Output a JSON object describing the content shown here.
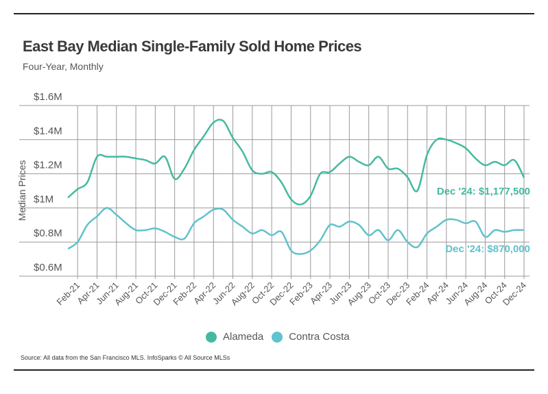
{
  "title": "East Bay Median Single-Family Sold Home Prices",
  "subtitle": "Four-Year, Monthly",
  "source": "Source:  All data from the San Francisco MLS. InfoSparks © All Source MLSs",
  "chart_data": {
    "type": "line",
    "ylabel": "Median Prices",
    "ylim": [
      0.6,
      1.6
    ],
    "yticks": [
      0.6,
      0.8,
      1.0,
      1.2,
      1.4,
      1.6
    ],
    "ytick_labels": [
      "$0.6M",
      "$0.8M",
      "$1M",
      "$1.2M",
      "$1.4M",
      "$1.6M"
    ],
    "grid": true,
    "legend_position": "bottom",
    "x": [
      "Jan-21",
      "Feb-21",
      "Mar-21",
      "Apr-21",
      "May-21",
      "Jun-21",
      "Jul-21",
      "Aug-21",
      "Sep-21",
      "Oct-21",
      "Nov-21",
      "Dec-21",
      "Jan-22",
      "Feb-22",
      "Mar-22",
      "Apr-22",
      "May-22",
      "Jun-22",
      "Jul-22",
      "Aug-22",
      "Sep-22",
      "Oct-22",
      "Nov-22",
      "Dec-22",
      "Jan-23",
      "Feb-23",
      "Mar-23",
      "Apr-23",
      "May-23",
      "Jun-23",
      "Jul-23",
      "Aug-23",
      "Sep-23",
      "Oct-23",
      "Nov-23",
      "Dec-23",
      "Jan-24",
      "Feb-24",
      "Mar-24",
      "Apr-24",
      "May-24",
      "Jun-24",
      "Jul-24",
      "Aug-24",
      "Sep-24",
      "Oct-24",
      "Nov-24",
      "Dec-24"
    ],
    "xtick_labels": [
      "Feb-21",
      "Apr-21",
      "Jun-21",
      "Aug-21",
      "Oct-21",
      "Dec-21",
      "Feb-22",
      "Apr-22",
      "Jun-22",
      "Aug-22",
      "Oct-22",
      "Dec-22",
      "Feb-23",
      "Apr-23",
      "Jun-23",
      "Aug-23",
      "Oct-23",
      "Dec-23",
      "Feb-24",
      "Apr-24",
      "Jun-24",
      "Aug-24",
      "Oct-24",
      "Dec-24"
    ],
    "units": "$M",
    "series": [
      {
        "name": "Alameda",
        "color": "#45b9a0",
        "values": [
          1.06,
          1.11,
          1.15,
          1.3,
          1.3,
          1.3,
          1.3,
          1.29,
          1.28,
          1.26,
          1.3,
          1.17,
          1.23,
          1.34,
          1.42,
          1.5,
          1.51,
          1.41,
          1.33,
          1.22,
          1.2,
          1.21,
          1.15,
          1.05,
          1.02,
          1.07,
          1.2,
          1.21,
          1.26,
          1.3,
          1.27,
          1.25,
          1.3,
          1.23,
          1.23,
          1.18,
          1.1,
          1.31,
          1.4,
          1.4,
          1.38,
          1.35,
          1.29,
          1.25,
          1.27,
          1.25,
          1.28,
          1.1775
        ],
        "end_label": "Dec '24: $1,177,500"
      },
      {
        "name": "Contra Costa",
        "color": "#5fc2cc",
        "values": [
          0.76,
          0.8,
          0.9,
          0.95,
          1.0,
          0.96,
          0.91,
          0.87,
          0.87,
          0.88,
          0.86,
          0.83,
          0.82,
          0.91,
          0.95,
          0.99,
          0.99,
          0.93,
          0.89,
          0.85,
          0.87,
          0.84,
          0.86,
          0.75,
          0.73,
          0.75,
          0.81,
          0.9,
          0.89,
          0.92,
          0.9,
          0.84,
          0.87,
          0.81,
          0.87,
          0.8,
          0.77,
          0.85,
          0.89,
          0.93,
          0.93,
          0.91,
          0.92,
          0.83,
          0.87,
          0.86,
          0.87,
          0.87
        ],
        "end_label": "Dec '24: $870,000"
      }
    ]
  }
}
